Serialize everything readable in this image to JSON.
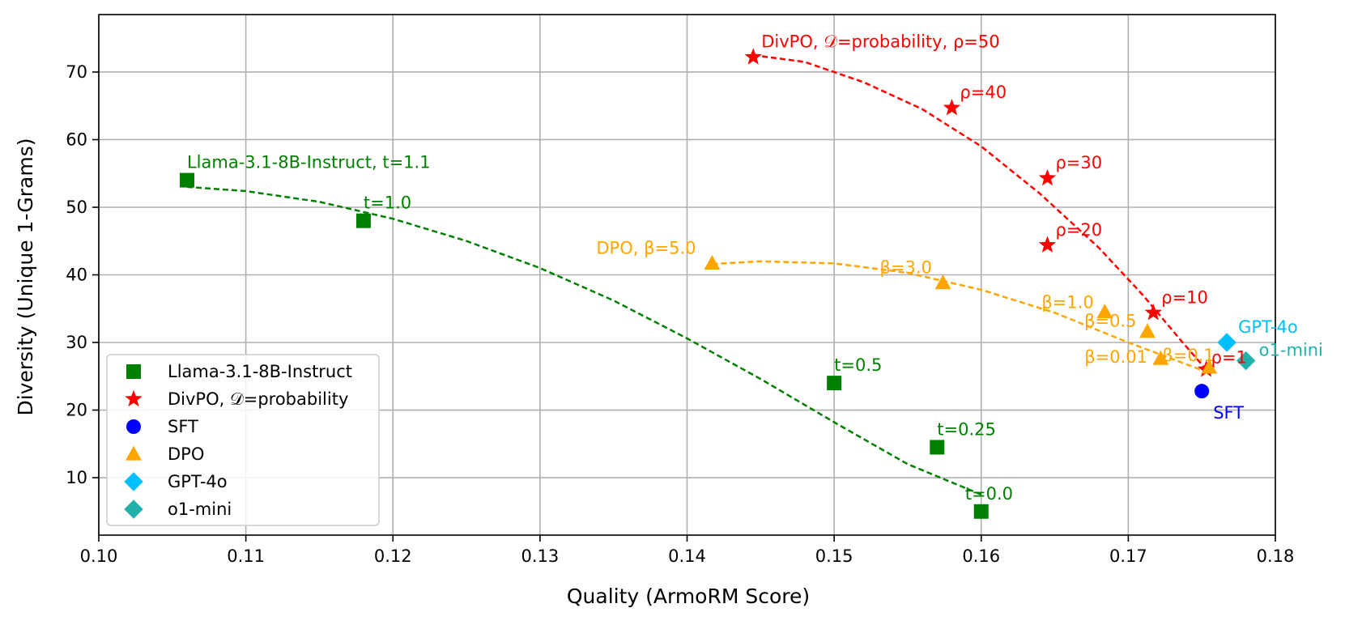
{
  "chart_data": {
    "type": "scatter",
    "xlabel": "Quality (ArmoRM Score)",
    "ylabel": "Diversity (Unique 1-Grams)",
    "xlim": [
      0.1,
      0.18
    ],
    "ylim": [
      1.5,
      78.5
    ],
    "grid": true,
    "x_ticks": [
      0.1,
      0.11,
      0.12,
      0.13,
      0.14,
      0.15,
      0.16,
      0.17,
      0.18
    ],
    "x_tick_labels": [
      "0.10",
      "0.11",
      "0.12",
      "0.13",
      "0.14",
      "0.15",
      "0.16",
      "0.17",
      "0.18"
    ],
    "y_ticks": [
      10,
      20,
      30,
      40,
      50,
      60,
      70
    ],
    "y_tick_labels": [
      "10",
      "20",
      "30",
      "40",
      "50",
      "60",
      "70"
    ],
    "legend_position": "lower-left",
    "series": [
      {
        "name": "Llama-3.1-8B-Instruct",
        "legend_label": "Llama-3.1-8B-Instruct",
        "color": "#008000",
        "marker": "square",
        "x": [
          0.106,
          0.118,
          0.15,
          0.157,
          0.16
        ],
        "y": [
          54.0,
          48.0,
          24.0,
          14.5,
          5.0
        ],
        "labels": [
          "Llama-3.1-8B-Instruct, t=1.1",
          "t=1.0",
          "t=0.5",
          "t=0.25",
          "t=0.0"
        ],
        "label_offsets": [
          [
            0,
            -15
          ],
          [
            0,
            -15
          ],
          [
            0,
            -15
          ],
          [
            0,
            -15
          ],
          [
            -20,
            -15
          ]
        ],
        "trend": [
          [
            0.106,
            53.0
          ],
          [
            0.11,
            52.4
          ],
          [
            0.115,
            50.8
          ],
          [
            0.12,
            48.3
          ],
          [
            0.125,
            45.0
          ],
          [
            0.13,
            41.0
          ],
          [
            0.135,
            36.2
          ],
          [
            0.14,
            30.6
          ],
          [
            0.145,
            24.6
          ],
          [
            0.15,
            18.2
          ],
          [
            0.155,
            12.0
          ],
          [
            0.16,
            7.5
          ]
        ]
      },
      {
        "name": "DivPO",
        "legend_label": "DivPO, 𝒟=probability",
        "color": "#ff0000",
        "marker": "star",
        "x": [
          0.1445,
          0.158,
          0.1645,
          0.1645,
          0.1717,
          0.1753
        ],
        "y": [
          72.2,
          64.7,
          54.3,
          44.4,
          34.4,
          26.0
        ],
        "labels": [
          "DivPO, 𝒟=probability, ρ=50",
          "ρ=40",
          "ρ=30",
          "ρ=20",
          "ρ=10",
          "ρ=1"
        ],
        "label_offsets": [
          [
            10,
            -12
          ],
          [
            10,
            -12
          ],
          [
            10,
            -12
          ],
          [
            10,
            -12
          ],
          [
            10,
            -12
          ],
          [
            6,
            -8
          ]
        ],
        "trend": [
          [
            0.1445,
            72.5
          ],
          [
            0.148,
            71.5
          ],
          [
            0.152,
            68.5
          ],
          [
            0.156,
            64.5
          ],
          [
            0.16,
            59.0
          ],
          [
            0.164,
            52.0
          ],
          [
            0.168,
            44.0
          ],
          [
            0.171,
            37.0
          ],
          [
            0.1735,
            30.5
          ],
          [
            0.1753,
            26.0
          ]
        ]
      },
      {
        "name": "SFT",
        "legend_label": "SFT",
        "color": "#0000ff",
        "marker": "circle",
        "x": [
          0.175
        ],
        "y": [
          22.8
        ],
        "labels": [
          "SFT"
        ],
        "label_offsets": [
          [
            14,
            34
          ]
        ]
      },
      {
        "name": "DPO",
        "legend_label": "DPO",
        "color": "#ffa500",
        "marker": "triangle",
        "x": [
          0.1417,
          0.1574,
          0.1684,
          0.1713,
          0.1722,
          0.1755
        ],
        "y": [
          41.7,
          38.8,
          34.5,
          31.6,
          27.6,
          26.3
        ],
        "labels": [
          "DPO, β=5.0",
          "β=3.0",
          "β=1.0",
          "β=0.5",
          "β=0.1",
          "β=0.01"
        ],
        "label_offsets": [
          [
            -143,
            -12
          ],
          [
            -78,
            -12
          ],
          [
            -78,
            -5
          ],
          [
            -78,
            -6
          ],
          [
            2,
            3
          ],
          [
            -154,
            -6
          ]
        ],
        "trend": [
          [
            0.1417,
            41.6
          ],
          [
            0.145,
            42.0
          ],
          [
            0.15,
            41.7
          ],
          [
            0.155,
            40.3
          ],
          [
            0.16,
            37.8
          ],
          [
            0.165,
            34.4
          ],
          [
            0.17,
            30.0
          ],
          [
            0.1755,
            25.5
          ]
        ]
      },
      {
        "name": "GPT-4o",
        "legend_label": "GPT-4o",
        "color": "#00bfff",
        "marker": "diamond",
        "x": [
          0.1767
        ],
        "y": [
          30.0
        ],
        "labels": [
          "GPT-4o"
        ],
        "label_offsets": [
          [
            14,
            -12
          ]
        ]
      },
      {
        "name": "o1-mini",
        "legend_label": "o1-mini",
        "color": "#20b2aa",
        "marker": "diamond",
        "x": [
          0.178
        ],
        "y": [
          27.3
        ],
        "labels": [
          "o1-mini"
        ],
        "label_offsets": [
          [
            16,
            -6
          ]
        ]
      }
    ]
  }
}
